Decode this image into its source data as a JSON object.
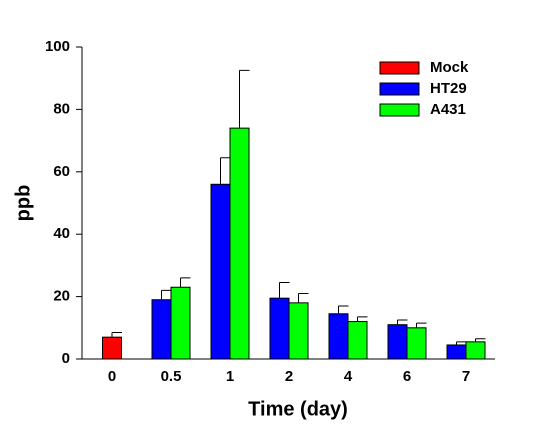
{
  "chart_data": {
    "type": "bar",
    "xlabel": "Time (day)",
    "ylabel": "ppb",
    "categories": [
      "0",
      "0.5",
      "1",
      "2",
      "4",
      "6",
      "7"
    ],
    "series": [
      {
        "name": "Mock",
        "color": "#ff0000",
        "values": [
          7,
          null,
          null,
          null,
          null,
          null,
          null
        ],
        "errors": [
          1.5,
          null,
          null,
          null,
          null,
          null,
          null
        ]
      },
      {
        "name": "HT29",
        "color": "#0000ff",
        "values": [
          null,
          19,
          56,
          19.5,
          14.5,
          11,
          4.5
        ],
        "errors": [
          null,
          3,
          8.5,
          5,
          2.5,
          1.5,
          1
        ]
      },
      {
        "name": "A431",
        "color": "#00ff00",
        "values": [
          null,
          23,
          74,
          18,
          12,
          10,
          5.5
        ],
        "errors": [
          null,
          3,
          18.5,
          3,
          1.5,
          1.5,
          1
        ]
      }
    ],
    "ylim": [
      0,
      100
    ],
    "yticks": [
      0,
      20,
      40,
      60,
      80,
      100
    ],
    "legend": "upper right"
  }
}
